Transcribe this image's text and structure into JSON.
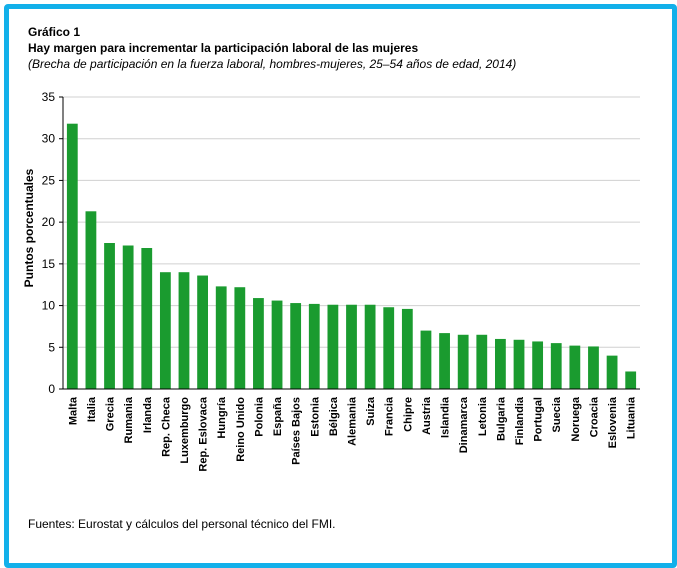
{
  "header": {
    "label": "Gráfico 1",
    "title": "Hay margen para incrementar la participación laboral de las mujeres",
    "subtitle": "(Brecha de participación en la fuerza laboral, hombres-mujeres, 25–54 años de edad, 2014)"
  },
  "footer": {
    "source": "Fuentes: Eurostat y cálculos del personal técnico del FMI."
  },
  "colors": {
    "frame": "#12b0ea",
    "bar": "#1a9b2f",
    "grid": "#d0d0d0"
  },
  "chart_data": {
    "type": "bar",
    "ylabel": "Puntos porcentuales",
    "ylim": [
      0,
      35
    ],
    "yticks": [
      0,
      5,
      10,
      15,
      20,
      25,
      30,
      35
    ],
    "grid": true,
    "categories": [
      "Malta",
      "Italia",
      "Grecia",
      "Rumania",
      "Irlanda",
      "Rep. Checa",
      "Luxemburgo",
      "Rep. Eslovaca",
      "Hungría",
      "Reino Unido",
      "Polonia",
      "España",
      "Países Bajos",
      "Estonia",
      "Bélgica",
      "Alemania",
      "Suiza",
      "Francia",
      "Chipre",
      "Austria",
      "Islandia",
      "Dinamarca",
      "Letonia",
      "Bulgaria",
      "Finlandia",
      "Portugal",
      "Suecia",
      "Noruega",
      "Croacia",
      "Eslovenia",
      "Lituania"
    ],
    "values": [
      31.8,
      21.3,
      17.5,
      17.2,
      16.9,
      14.0,
      14.0,
      13.6,
      12.3,
      12.2,
      10.9,
      10.6,
      10.3,
      10.2,
      10.1,
      10.1,
      10.1,
      9.8,
      9.6,
      7.0,
      6.7,
      6.5,
      6.5,
      6.0,
      5.9,
      5.7,
      5.5,
      5.2,
      5.1,
      4.0,
      2.1
    ]
  }
}
